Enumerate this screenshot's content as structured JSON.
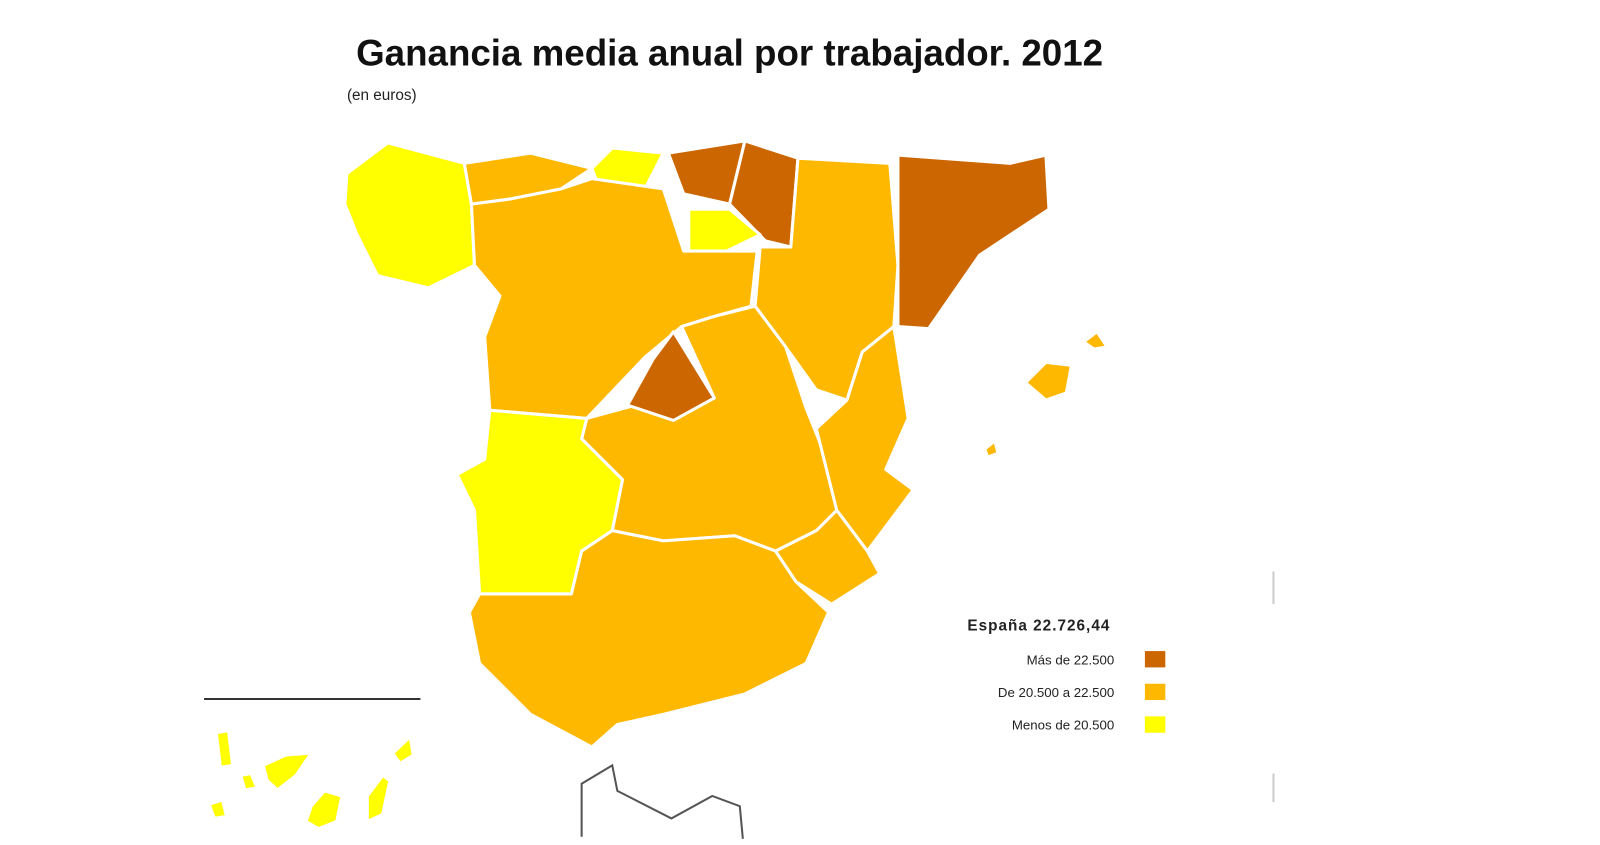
{
  "title": "Ganancia media anual por trabajador. 2012",
  "subtitle": "(en euros)",
  "legend": {
    "title": "España 22.726,44",
    "items": [
      {
        "label": "Más de 22.500",
        "color": "#cc6600"
      },
      {
        "label": "De 20.500 a 22.500",
        "color": "#ffb800"
      },
      {
        "label": "Menos de 20.500",
        "color": "#ffff00"
      }
    ]
  }
}
